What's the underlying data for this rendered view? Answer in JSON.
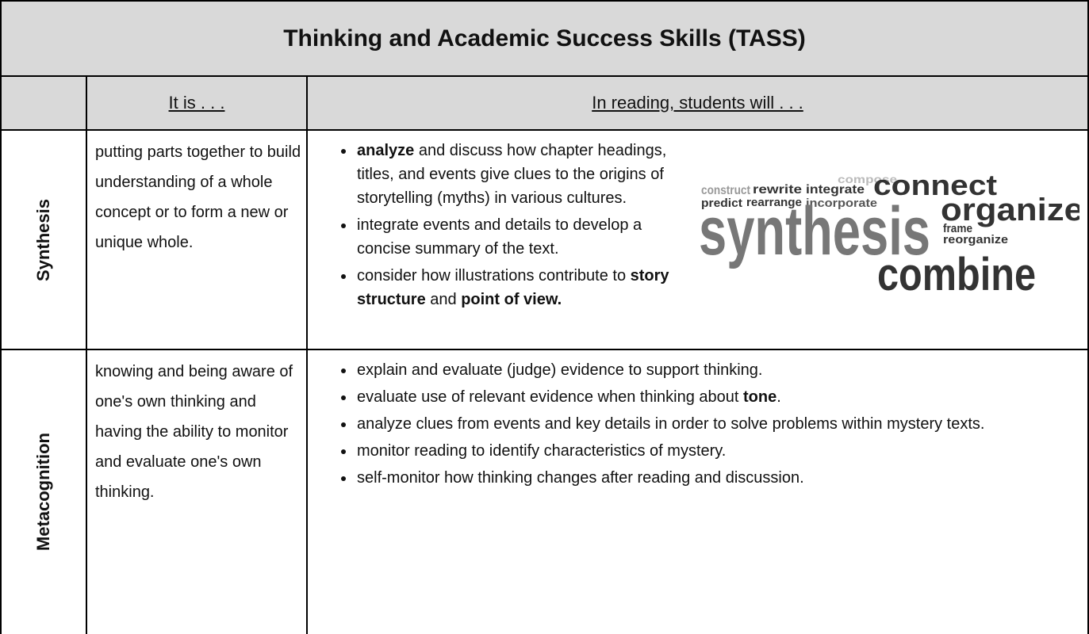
{
  "title": "Thinking and Academic Success Skills (TASS)",
  "header": {
    "col1": "It is . . .",
    "col2": "In reading, students will . . ."
  },
  "rows": [
    {
      "label": "Synthesis",
      "definition": "putting parts together to build understanding of a whole concept or to form a new or unique whole.",
      "bullets": [
        [
          {
            "text": "analyze",
            "bold": true
          },
          {
            "text": " and discuss how chapter headings, titles, and events give clues to the origins of storytelling (myths) in various cultures."
          }
        ],
        [
          {
            "text": "integrate events and details to develop a concise summary of the text."
          }
        ],
        [
          {
            "text": "consider how illustrations contribute to "
          },
          {
            "text": "story structure",
            "bold": true
          },
          {
            "text": " and "
          },
          {
            "text": "point of view.",
            "bold": true
          }
        ]
      ],
      "word_cloud": [
        "compose",
        "construct",
        "rewrite",
        "integrate",
        "connect",
        "predict",
        "rearrange",
        "incorporate",
        "organize",
        "synthesis",
        "frame",
        "reorganize",
        "combine"
      ]
    },
    {
      "label": "Metacognition",
      "definition": "knowing and being aware of one's own thinking and having the ability to monitor and evaluate one's own thinking.",
      "bullets": [
        [
          {
            "text": "explain and evaluate (judge) evidence to support thinking."
          }
        ],
        [
          {
            "text": "evaluate use of relevant evidence when thinking about "
          },
          {
            "text": "tone",
            "bold": true
          },
          {
            "text": "."
          }
        ],
        [
          {
            "text": "analyze clues from events and key details in order to solve problems within mystery texts."
          }
        ],
        [
          {
            "text": "monitor reading to identify characteristics of mystery."
          }
        ],
        [
          {
            "text": "self-monitor how thinking changes after reading and discussion."
          }
        ]
      ]
    }
  ]
}
